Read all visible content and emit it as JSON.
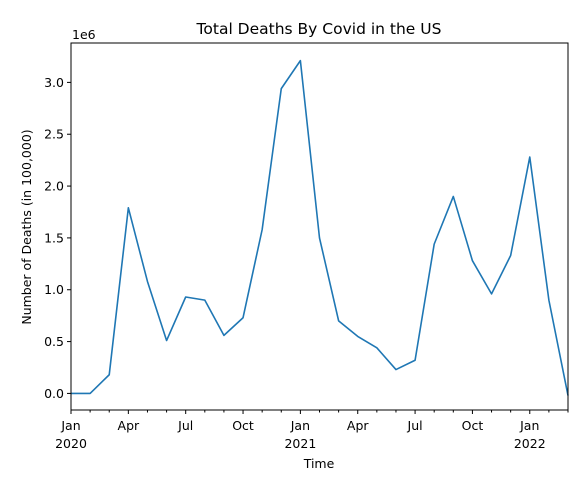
{
  "chart_data": {
    "type": "line",
    "title": "Total Deaths By Covid in the US",
    "xlabel": "Time",
    "ylabel": "Number of Deaths (in 100,000)",
    "y_offset_text": "1e6",
    "ylim": [
      -0.16,
      3.38
    ],
    "xlim": [
      "2020-01",
      "2022-03"
    ],
    "grid": false,
    "x_ticks_major": [
      {
        "index": 0,
        "label": "Jan",
        "year": "2020"
      },
      {
        "index": 3,
        "label": "Apr",
        "year": ""
      },
      {
        "index": 6,
        "label": "Jul",
        "year": ""
      },
      {
        "index": 9,
        "label": "Oct",
        "year": ""
      },
      {
        "index": 12,
        "label": "Jan",
        "year": "2021"
      },
      {
        "index": 15,
        "label": "Apr",
        "year": ""
      },
      {
        "index": 18,
        "label": "Jul",
        "year": ""
      },
      {
        "index": 21,
        "label": "Oct",
        "year": ""
      },
      {
        "index": 24,
        "label": "Jan",
        "year": "2022"
      }
    ],
    "y_ticks": [
      {
        "value": 0.0,
        "label": "0.0"
      },
      {
        "value": 0.5,
        "label": "0.5"
      },
      {
        "value": 1.0,
        "label": "1.0"
      },
      {
        "value": 1.5,
        "label": "1.5"
      },
      {
        "value": 2.0,
        "label": "2.0"
      },
      {
        "value": 2.5,
        "label": "2.5"
      },
      {
        "value": 3.0,
        "label": "3.0"
      }
    ],
    "series": [
      {
        "color": "#1f77b4",
        "x": [
          "2020-01",
          "2020-02",
          "2020-03",
          "2020-04",
          "2020-05",
          "2020-06",
          "2020-07",
          "2020-08",
          "2020-09",
          "2020-10",
          "2020-11",
          "2020-12",
          "2021-01",
          "2021-02",
          "2021-03",
          "2021-04",
          "2021-05",
          "2021-06",
          "2021-07",
          "2021-08",
          "2021-09",
          "2021-10",
          "2021-11",
          "2021-12",
          "2022-01",
          "2022-02",
          "2022-03"
        ],
        "values": [
          0.0,
          0.0,
          0.18,
          1.79,
          1.08,
          0.51,
          0.93,
          0.9,
          0.56,
          0.73,
          1.58,
          2.94,
          3.21,
          1.5,
          0.7,
          0.55,
          0.44,
          0.23,
          0.32,
          1.44,
          1.9,
          1.28,
          0.96,
          1.33,
          2.28,
          0.9,
          -0.02
        ]
      }
    ]
  }
}
